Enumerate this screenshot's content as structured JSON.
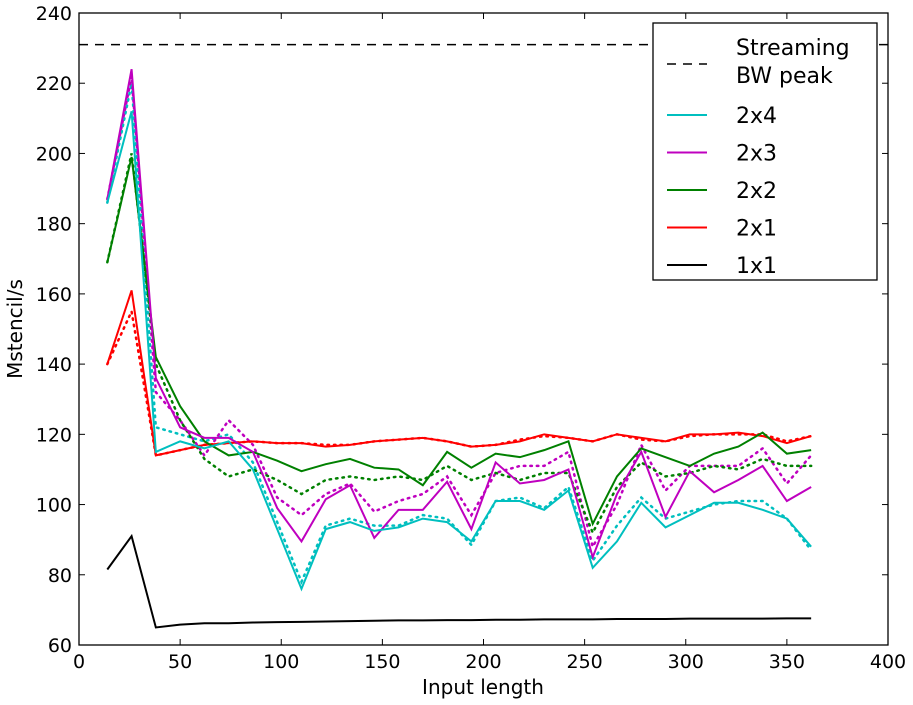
{
  "chart_data": {
    "type": "line",
    "title": "",
    "xlabel": "Input length",
    "ylabel": "Mstencil/s",
    "xlim": [
      0,
      400
    ],
    "ylim": [
      60,
      240
    ],
    "xticks": [
      0,
      50,
      100,
      150,
      200,
      250,
      300,
      350,
      400
    ],
    "yticks": [
      60,
      80,
      100,
      120,
      140,
      160,
      180,
      200,
      220,
      240
    ],
    "grid": false,
    "legend_position": "top-right",
    "x": [
      14,
      26,
      38,
      50,
      62,
      74,
      86,
      98,
      110,
      122,
      134,
      146,
      158,
      170,
      182,
      194,
      206,
      218,
      230,
      242,
      254,
      266,
      278,
      290,
      302,
      314,
      326,
      338,
      350,
      362
    ],
    "reference_line": {
      "name": "Streaming BW peak",
      "value": 231,
      "color": "#000000",
      "style": "dashed"
    },
    "series": [
      {
        "name": "2x4",
        "color": "#00bfbf",
        "values": [
          186,
          212,
          115,
          118,
          116,
          118,
          110,
          93,
          76,
          93,
          95,
          92.5,
          93.5,
          96,
          95,
          89.5,
          101,
          101,
          98.5,
          104,
          82,
          89.5,
          100.5,
          93.5,
          97,
          100.5,
          100.5,
          98.5,
          96,
          88
        ],
        "dotted_values": [
          186,
          220,
          122,
          120,
          118,
          120,
          112,
          95,
          78,
          94,
          96,
          94,
          94,
          97,
          96,
          88.5,
          101,
          102,
          99,
          105,
          84,
          94,
          102,
          96,
          98,
          100,
          101,
          101,
          96,
          87
        ]
      },
      {
        "name": "2x3",
        "color": "#bf00bf",
        "values": [
          187,
          224,
          136,
          122,
          119,
          119,
          115,
          99,
          89.5,
          101.5,
          105.5,
          90.5,
          98.5,
          98.5,
          106.5,
          93,
          112,
          106,
          107,
          110,
          85,
          103,
          115,
          96.5,
          109.5,
          103.5,
          107,
          111,
          101,
          105
        ],
        "dotted_values": [
          187,
          222,
          132,
          124,
          114,
          124,
          117,
          102,
          97,
          103,
          106,
          98,
          101,
          103,
          108,
          97,
          109,
          111,
          111,
          115,
          88,
          100,
          117,
          104,
          111,
          111,
          111,
          116,
          106,
          114
        ]
      },
      {
        "name": "2x2",
        "color": "#008000",
        "values": [
          169,
          199,
          142,
          128,
          118,
          114,
          115,
          112.5,
          109.5,
          111.5,
          113,
          110.5,
          110,
          105.5,
          115,
          110.5,
          114.5,
          113.5,
          115.5,
          118,
          94.5,
          108,
          116,
          113.5,
          111,
          114.5,
          116.5,
          120.5,
          114.5,
          115.5
        ],
        "dotted_values": [
          169,
          200,
          140,
          124,
          113,
          108,
          110,
          107,
          103,
          107,
          108,
          107,
          108,
          107,
          111,
          107,
          109,
          107,
          109,
          109,
          92,
          105,
          112,
          108,
          109,
          111,
          110,
          113,
          111,
          111
        ]
      },
      {
        "name": "2x1",
        "color": "#ff0000",
        "values": [
          140,
          161,
          114,
          115.5,
          117,
          117.5,
          118,
          117.5,
          117.5,
          116.5,
          117,
          118,
          118.5,
          119,
          118,
          116.5,
          117,
          118,
          120,
          119,
          118,
          120,
          119,
          118,
          120,
          120,
          120.5,
          119.5,
          117.5,
          119.5
        ],
        "dotted_values": [
          140,
          155,
          114,
          115.5,
          117,
          117.5,
          118,
          117.5,
          117.5,
          117,
          117,
          118,
          118.5,
          119,
          118,
          116.5,
          117,
          118.5,
          119.5,
          119,
          118,
          120,
          118.5,
          118,
          119.5,
          120,
          120,
          120,
          118,
          119.5
        ]
      },
      {
        "name": "1x1",
        "color": "#000000",
        "values": [
          81.5,
          91,
          65,
          65.8,
          66.2,
          66.2,
          66.4,
          66.5,
          66.6,
          66.7,
          66.8,
          66.9,
          67,
          67,
          67.1,
          67.1,
          67.2,
          67.2,
          67.3,
          67.3,
          67.3,
          67.4,
          67.4,
          67.4,
          67.5,
          67.5,
          67.5,
          67.5,
          67.6,
          67.6
        ]
      }
    ],
    "legend": [
      "Streaming\nBW peak",
      "2x4",
      "2x3",
      "2x2",
      "2x1",
      "1x1"
    ],
    "legend_lines": [
      "Streaming",
      "BW peak"
    ]
  }
}
